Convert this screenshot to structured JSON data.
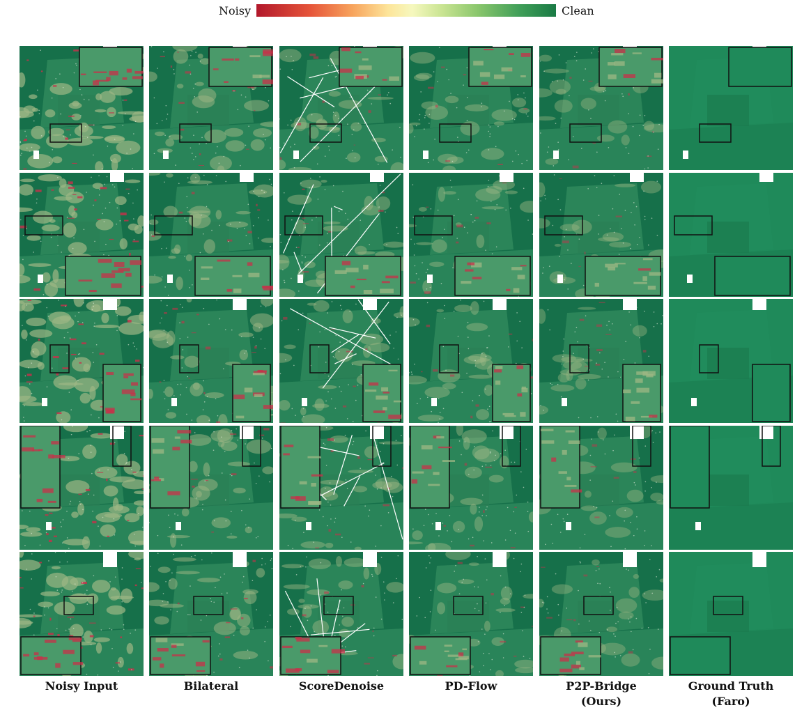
{
  "colorbar": {
    "left_label": "Noisy",
    "right_label": "Clean",
    "gradient_stops": [
      "#b2182b",
      "#e6553a",
      "#f7a35c",
      "#fde59a",
      "#f6f8be",
      "#c9e492",
      "#89c66c",
      "#3f9e58",
      "#1a7a45"
    ]
  },
  "columns": [
    {
      "label": "Noisy Input",
      "noise": 1.0
    },
    {
      "label": "Bilateral",
      "noise": 0.6
    },
    {
      "label": "ScoreDenoise",
      "noise": 0.5
    },
    {
      "label": "PD-Flow",
      "noise": 0.45
    },
    {
      "label": "P2P-Bridge\n(Ours)",
      "noise": 0.35
    },
    {
      "label": "Ground Truth\n(Faro)",
      "noise": 0.0
    }
  ],
  "rows": 5,
  "colors": {
    "clean": "#1f8a5a",
    "clean_dark": "#16704a",
    "mid": "#9db784",
    "noisy": "#c8304a",
    "hole": "#ffffff",
    "box": "#111111"
  }
}
